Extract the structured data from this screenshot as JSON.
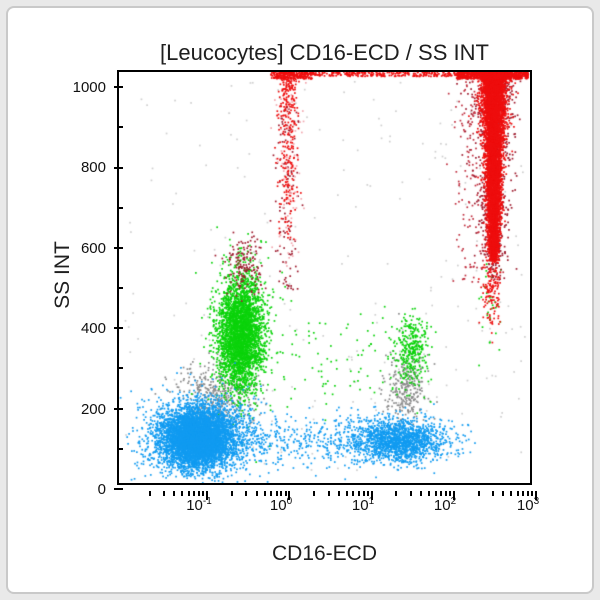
{
  "window": {
    "background": "#ffffff",
    "frame_border_color": "#c9c9c9"
  },
  "chart_data": {
    "type": "scatter",
    "subtype": "flow-cytometry-dot-plot",
    "title": "[Leucocytes] CD16-ECD / SS INT",
    "xlabel": "CD16-ECD",
    "ylabel": "SS INT",
    "x_scale": "log",
    "x_range_log10": [
      -2,
      3
    ],
    "y_scale": "linear",
    "y_range": [
      0,
      1023
    ],
    "grid": "off",
    "legend": "none",
    "x_ticks": [
      {
        "base": "10",
        "exp": "-1"
      },
      {
        "base": "10",
        "exp": "0"
      },
      {
        "base": "10",
        "exp": "1"
      },
      {
        "base": "10",
        "exp": "2"
      },
      {
        "base": "10",
        "exp": "3"
      }
    ],
    "y_ticks": [
      "1000",
      "800",
      "600",
      "400",
      "200",
      "0"
    ],
    "colors": {
      "blue": "#119bf1",
      "green": "#0bd30b",
      "red": "#ee0e0e",
      "dark_red": "#9e1b2e",
      "pink": "#f2a9b0",
      "gray": "#8c8c8c",
      "speckle": "#cfcfcf",
      "axis": "#000000"
    },
    "populations": [
      {
        "name": "background-speckle",
        "color": "#cfcfcf",
        "count": 230,
        "x": {
          "dist": "uniform",
          "min": -1.95,
          "max": 2.95
        },
        "y": {
          "dist": "uniform",
          "min": 25,
          "max": 1000
        }
      },
      {
        "name": "bridge-monocytes-gray",
        "color": "#8c8c8c",
        "count": 380,
        "x": {
          "dist": "normal",
          "mean": -0.82,
          "sd": 0.24
        },
        "y": {
          "dist": "normal",
          "mean": 225,
          "sd": 38
        }
      },
      {
        "name": "gray-above-right-blue",
        "color": "#8c8c8c",
        "count": 300,
        "x": {
          "dist": "normal",
          "mean": 1.5,
          "sd": 0.12
        },
        "y": {
          "dist": "normal",
          "mean": 235,
          "sd": 52
        }
      },
      {
        "name": "granulocytes-green-halo",
        "color": "#0bd30b",
        "count": 260,
        "x": {
          "dist": "normal",
          "mean": -0.5,
          "sd": 0.22
        },
        "y": {
          "dist": "normal",
          "mean": 360,
          "sd": 110
        }
      },
      {
        "name": "granulocytes-green",
        "color": "#0bd30b",
        "count": 3200,
        "x": {
          "dist": "normal",
          "mean": -0.52,
          "sd": 0.135
        },
        "y": {
          "dist": "normal",
          "mean": 372,
          "sd": 70
        }
      },
      {
        "name": "eosinophils-green-right",
        "color": "#0bd30b",
        "count": 330,
        "x": {
          "dist": "normal",
          "mean": 1.55,
          "sd": 0.11
        },
        "y": {
          "dist": "normal",
          "mean": 330,
          "sd": 45
        }
      },
      {
        "name": "green-sparse-mid",
        "color": "#0bd30b",
        "count": 70,
        "x": {
          "dist": "uniform",
          "min": -0.1,
          "max": 1.3
        },
        "y": {
          "dist": "normal",
          "mean": 300,
          "sd": 60
        }
      },
      {
        "name": "green-specks-column-tip",
        "color": "#0bd30b",
        "count": 30,
        "x": {
          "dist": "normal",
          "mean": 2.52,
          "sd": 0.07
        },
        "y": {
          "dist": "normal",
          "mean": 450,
          "sd": 60
        }
      },
      {
        "name": "lymphocytes-halo",
        "color": "#119bf1",
        "count": 1600,
        "x": {
          "dist": "normal",
          "mean": -1.02,
          "sd": 0.34
        },
        "y": {
          "dist": "normal",
          "mean": 118,
          "sd": 52
        }
      },
      {
        "name": "lymphocytes-core",
        "color": "#119bf1",
        "count": 5000,
        "x": {
          "dist": "normal",
          "mean": -1.04,
          "sd": 0.21
        },
        "y": {
          "dist": "normal",
          "mean": 112,
          "sd": 34
        }
      },
      {
        "name": "blue-bridge-bottom",
        "color": "#119bf1",
        "count": 300,
        "x": {
          "dist": "uniform",
          "min": -0.45,
          "max": 0.95
        },
        "y": {
          "dist": "normal",
          "mean": 105,
          "sd": 33
        }
      },
      {
        "name": "nk-monocytes-blue-right",
        "color": "#119bf1",
        "count": 1700,
        "x": {
          "dist": "normal",
          "mean": 1.4,
          "sd": 0.3
        },
        "y": {
          "dist": "normal",
          "mean": 106,
          "sd": 27
        }
      },
      {
        "name": "dark-red-over-green",
        "color": "#9e1b2e",
        "count": 150,
        "x": {
          "dist": "normal",
          "mean": -0.46,
          "sd": 0.12
        },
        "y": {
          "dist": "normal",
          "mean": 545,
          "sd": 45
        }
      },
      {
        "name": "streak1-dark-red",
        "color": "#9e1b2e",
        "count": 110,
        "x": {
          "dist": "normal",
          "mean": 0.05,
          "sd": 0.07
        },
        "y": {
          "dist": "uniform",
          "min": 480,
          "max": 950
        }
      },
      {
        "name": "streak1-pink",
        "color": "#f2a9b0",
        "count": 90,
        "x": {
          "dist": "normal",
          "mean": 0.07,
          "sd": 0.09
        },
        "y": {
          "dist": "uniform",
          "min": 520,
          "max": 1010
        }
      },
      {
        "name": "red-left-of-column",
        "color": "#c03040",
        "count": 160,
        "x": {
          "dist": "normal",
          "mean": 2.3,
          "sd": 0.13
        },
        "y": {
          "dist": "uniform",
          "min": 500,
          "max": 1005
        }
      },
      {
        "name": "red-column-maroon-halo",
        "color": "#9e1b2e",
        "count": 800,
        "x": {
          "dist": "normal",
          "mean": 2.56,
          "sd": 0.15
        },
        "y": {
          "dist": "topweighted",
          "max": 1023,
          "range": 520,
          "power": 1.4
        },
        "taper": 0.55
      },
      {
        "name": "red-streak-at-1",
        "color": "#ee0e0e",
        "count": 330,
        "x": {
          "dist": "normal",
          "mean": 0.06,
          "sd": 0.055
        },
        "y": {
          "dist": "topweighted",
          "max": 1023,
          "range": 420,
          "power": 1.9
        }
      },
      {
        "name": "neutrophil-red-column",
        "color": "#ee0e0e",
        "count": 6500,
        "x": {
          "dist": "normal",
          "mean": 2.56,
          "sd": 0.08
        },
        "y": {
          "dist": "topweighted",
          "max": 1023,
          "range": 470,
          "power": 1.6
        },
        "taper": 0.62
      },
      {
        "name": "red-column-bottom-tail",
        "color": "#ee0e0e",
        "count": 150,
        "x": {
          "dist": "normal",
          "mean": 2.53,
          "sd": 0.06
        },
        "y": {
          "dist": "normal",
          "mean": 480,
          "sd": 45
        }
      },
      {
        "name": "top-pileup-left",
        "color": "#ee0e0e",
        "count": 200,
        "x": {
          "dist": "uniform",
          "min": -0.15,
          "max": 0.35
        },
        "y": {
          "dist": "uniform",
          "min": 1006,
          "max": 1023
        }
      },
      {
        "name": "top-pileup-mid",
        "color": "#ee0e0e",
        "count": 260,
        "x": {
          "dist": "uniform",
          "min": 0.35,
          "max": 2.1
        },
        "y": {
          "dist": "uniform",
          "min": 1012,
          "max": 1023
        }
      },
      {
        "name": "top-pileup-right",
        "color": "#ee0e0e",
        "count": 700,
        "x": {
          "dist": "uniform",
          "min": 2.1,
          "max": 2.98
        },
        "y": {
          "dist": "uniform",
          "min": 1006,
          "max": 1023
        }
      }
    ]
  }
}
